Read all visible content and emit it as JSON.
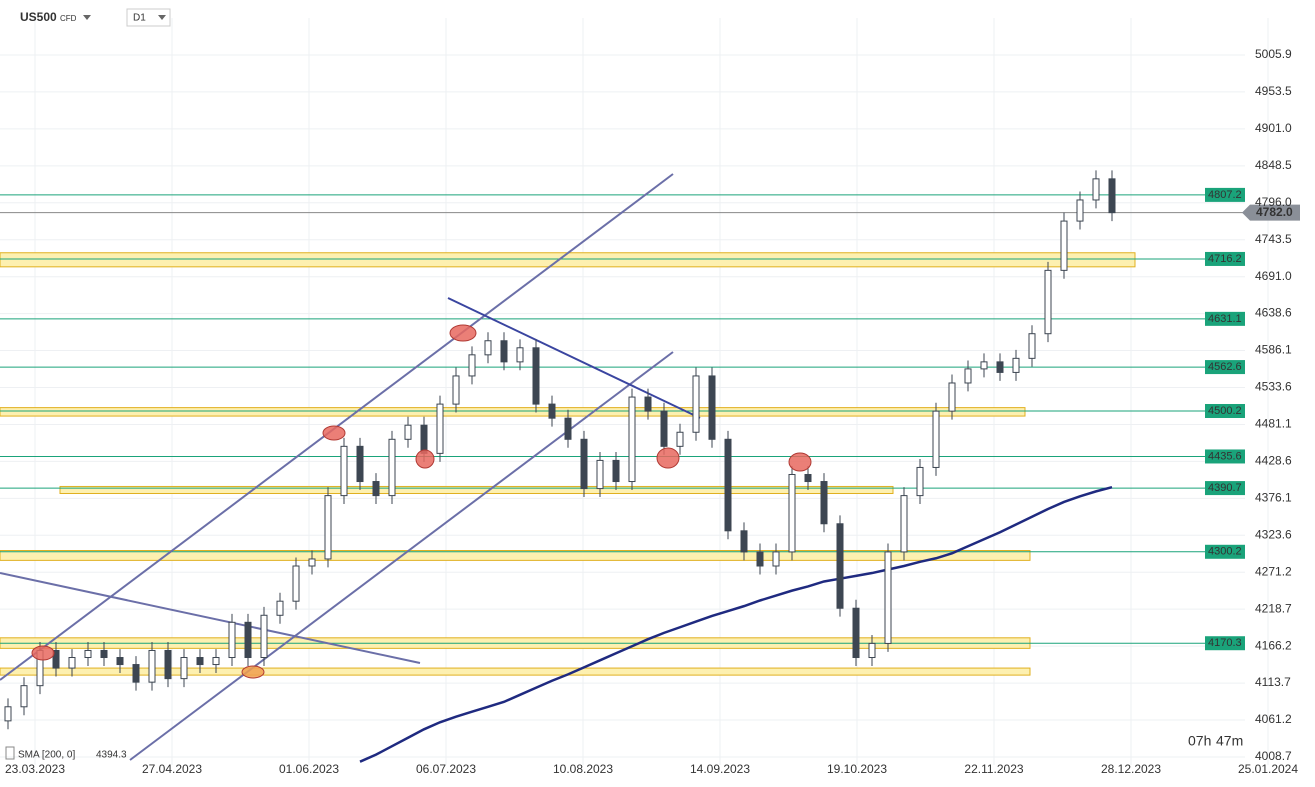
{
  "chart_data": {
    "type": "candlestick",
    "symbol": "US500",
    "instrument": "CFD",
    "timeframe": "D1",
    "indicator": {
      "label": "SMA [200,  0]",
      "value": 4394.3
    },
    "timer": {
      "hours": "07h",
      "minutes": "47m"
    },
    "x_labels": [
      "23.03.2023",
      "27.04.2023",
      "01.06.2023",
      "06.07.2023",
      "10.08.2023",
      "14.09.2023",
      "19.10.2023",
      "22.11.2023",
      "28.12.2023",
      "25.01.2024"
    ],
    "ylim": [
      3997.3,
      5058.5
    ],
    "yticks": [
      5005.9,
      4953.5,
      {
        "value": 4901,
        "label": "4901.0"
      },
      4848.5,
      {
        "value": 4796,
        "label": "4796.0"
      },
      4743.5,
      {
        "value": 4691,
        "label": "4691.0"
      },
      4638.6,
      4586.1,
      4533.6,
      4481.1,
      4428.6,
      4376.1,
      4323.6,
      4271.2,
      4218.7,
      4166.2,
      4113.7,
      4061.2,
      4008.7
    ],
    "grid": true,
    "up_color": "#ffffff",
    "down_color": "#3d4652",
    "wick_color": "#3d4652",
    "current_price": {
      "value": 4782,
      "label": "4782.0"
    },
    "levels": [
      4807.2,
      4716.2,
      4631.1,
      4562.6,
      4500.2,
      4435.6,
      4390.7,
      4300.2,
      4170.3
    ],
    "level_color": "#1aa37a",
    "zones": [
      [
        4705,
        4725
      ],
      [
        4493,
        4505
      ],
      [
        4383,
        4393
      ],
      [
        4288,
        4302
      ],
      [
        4163,
        4178
      ],
      [
        4125,
        4135
      ]
    ],
    "zone_color": "#fdf0b0",
    "sma_color": "#1f2a80",
    "candles": [
      [
        4060,
        4092,
        4048,
        4080
      ],
      [
        4080,
        4122,
        4068,
        4110
      ],
      [
        4110,
        4172,
        4098,
        4160
      ],
      [
        4160,
        4172,
        4123,
        4135
      ],
      [
        4135,
        4162,
        4123,
        4150
      ],
      [
        4150,
        4172,
        4138,
        4160
      ],
      [
        4160,
        4172,
        4138,
        4150
      ],
      [
        4150,
        4162,
        4128,
        4140
      ],
      [
        4140,
        4152,
        4103,
        4115
      ],
      [
        4115,
        4172,
        4103,
        4160
      ],
      [
        4160,
        4172,
        4108,
        4120
      ],
      [
        4120,
        4162,
        4108,
        4150
      ],
      [
        4150,
        4162,
        4128,
        4140
      ],
      [
        4140,
        4162,
        4128,
        4150
      ],
      [
        4150,
        4212,
        4138,
        4200
      ],
      [
        4200,
        4212,
        4138,
        4150
      ],
      [
        4150,
        4222,
        4138,
        4210
      ],
      [
        4210,
        4242,
        4198,
        4230
      ],
      [
        4230,
        4292,
        4218,
        4280
      ],
      [
        4280,
        4302,
        4268,
        4290
      ],
      [
        4290,
        4392,
        4278,
        4380
      ],
      [
        4380,
        4462,
        4368,
        4450
      ],
      [
        4450,
        4462,
        4388,
        4400
      ],
      [
        4400,
        4412,
        4368,
        4380
      ],
      [
        4380,
        4472,
        4368,
        4460
      ],
      [
        4460,
        4492,
        4448,
        4480
      ],
      [
        4480,
        4492,
        4428,
        4440
      ],
      [
        4440,
        4522,
        4428,
        4510
      ],
      [
        4510,
        4562,
        4498,
        4550
      ],
      [
        4550,
        4592,
        4538,
        4580
      ],
      [
        4580,
        4612,
        4568,
        4600
      ],
      [
        4600,
        4612,
        4558,
        4570
      ],
      [
        4570,
        4602,
        4558,
        4590
      ],
      [
        4590,
        4602,
        4498,
        4510
      ],
      [
        4510,
        4522,
        4478,
        4490
      ],
      [
        4490,
        4502,
        4448,
        4460
      ],
      [
        4460,
        4472,
        4378,
        4390
      ],
      [
        4390,
        4442,
        4378,
        4430
      ],
      [
        4430,
        4442,
        4388,
        4400
      ],
      [
        4400,
        4532,
        4388,
        4520
      ],
      [
        4520,
        4532,
        4488,
        4500
      ],
      [
        4500,
        4512,
        4438,
        4450
      ],
      [
        4450,
        4482,
        4438,
        4470
      ],
      [
        4470,
        4562,
        4458,
        4550
      ],
      [
        4550,
        4562,
        4448,
        4460
      ],
      [
        4460,
        4472,
        4318,
        4330
      ],
      [
        4330,
        4342,
        4288,
        4300
      ],
      [
        4300,
        4312,
        4268,
        4280
      ],
      [
        4280,
        4312,
        4268,
        4300
      ],
      [
        4300,
        4422,
        4288,
        4410
      ],
      [
        4410,
        4422,
        4388,
        4400
      ],
      [
        4400,
        4412,
        4328,
        4340
      ],
      [
        4340,
        4352,
        4208,
        4220
      ],
      [
        4220,
        4232,
        4138,
        4150
      ],
      [
        4150,
        4182,
        4138,
        4170
      ],
      [
        4170,
        4312,
        4158,
        4300
      ],
      [
        4300,
        4392,
        4288,
        4380
      ],
      [
        4380,
        4432,
        4368,
        4420
      ],
      [
        4420,
        4512,
        4408,
        4500
      ],
      [
        4500,
        4552,
        4488,
        4540
      ],
      [
        4540,
        4572,
        4528,
        4560
      ],
      [
        4560,
        4582,
        4548,
        4570
      ],
      [
        4570,
        4582,
        4543,
        4555
      ],
      [
        4555,
        4587,
        4543,
        4575
      ],
      [
        4575,
        4622,
        4563,
        4610
      ],
      [
        4610,
        4712,
        4598,
        4700
      ],
      [
        4700,
        4782,
        4688,
        4770
      ],
      [
        4770,
        4812,
        4758,
        4800
      ],
      [
        4800,
        4842,
        4788,
        4830
      ],
      [
        4830,
        4842,
        4770,
        4782
      ]
    ],
    "sma": [
      null,
      null,
      null,
      null,
      null,
      null,
      null,
      null,
      null,
      null,
      null,
      null,
      null,
      null,
      null,
      null,
      null,
      null,
      null,
      null,
      null,
      null,
      4002,
      4012,
      4024,
      4036,
      4048,
      4058,
      4066,
      4073,
      4080,
      4087,
      4097,
      4107,
      4117,
      4126,
      4136,
      4146,
      4156,
      4166,
      4176,
      4185,
      4193,
      4201,
      4209,
      4216,
      4223,
      4231,
      4238,
      4245,
      4251,
      4258,
      4262,
      4266,
      4270,
      4275,
      4280,
      4286,
      4291,
      4298,
      4308,
      4318,
      4328,
      4339,
      4350,
      4361,
      4371,
      4379,
      4386,
      4392
    ]
  }
}
